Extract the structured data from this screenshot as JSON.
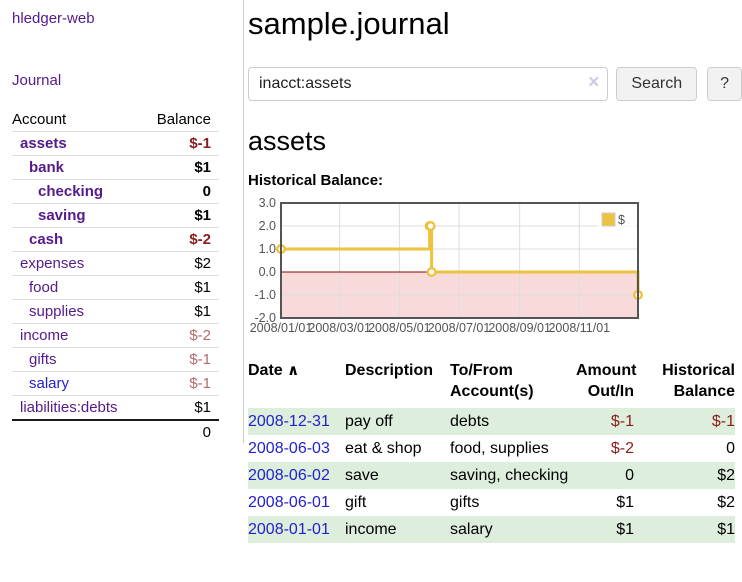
{
  "sidebar": {
    "brand": "hledger-web",
    "nav": {
      "journal_label": "Journal"
    },
    "accounts_table": {
      "headers": {
        "account": "Account",
        "balance": "Balance"
      },
      "rows": [
        {
          "name": "assets",
          "balance": "$-1",
          "level": 1,
          "bold": true,
          "negative": true
        },
        {
          "name": "bank",
          "balance": "$1",
          "level": 2,
          "bold": true,
          "negative": false
        },
        {
          "name": "checking",
          "balance": "0",
          "level": 3,
          "bold": true,
          "negative": false
        },
        {
          "name": "saving",
          "balance": "$1",
          "level": 3,
          "bold": true,
          "negative": false
        },
        {
          "name": "cash",
          "balance": "$-2",
          "level": 2,
          "bold": true,
          "negative": true
        },
        {
          "name": "expenses",
          "balance": "$2",
          "level": 1,
          "bold": false,
          "negative": false
        },
        {
          "name": "food",
          "balance": "$1",
          "level": 2,
          "bold": false,
          "negative": false
        },
        {
          "name": "supplies",
          "balance": "$1",
          "level": 2,
          "bold": false,
          "negative": false
        },
        {
          "name": "income",
          "balance": "$-2",
          "level": 1,
          "bold": false,
          "negative": true
        },
        {
          "name": "gifts",
          "balance": "$-1",
          "level": 2,
          "bold": false,
          "negative": true
        },
        {
          "name": "salary",
          "balance": "$-1",
          "level": 2,
          "bold": false,
          "negative": true,
          "link_color": "blue"
        },
        {
          "name": "liabilities:debts",
          "balance": "$1",
          "level": 1,
          "bold": false,
          "negative": false
        }
      ],
      "total": "0"
    }
  },
  "header": {
    "title": "sample.journal"
  },
  "search": {
    "query": "inacct:assets",
    "clear_icon": "×",
    "search_label": "Search",
    "help_label": "?"
  },
  "account_page": {
    "title": "assets",
    "chart_label": "Historical Balance:"
  },
  "chart_data": {
    "type": "line",
    "title": "Historical Balance",
    "xlabel": "",
    "ylabel": "",
    "steps": true,
    "grid": true,
    "legend_position": "top-right",
    "legend": [
      {
        "label": "$",
        "color": "#edc240"
      }
    ],
    "xlim": [
      0,
      365
    ],
    "ylim": [
      -2,
      3
    ],
    "y_ticks": [
      3.0,
      2.0,
      1.0,
      0.0,
      -1.0,
      -2.0
    ],
    "x_ticks": [
      {
        "label": "2008/01/01",
        "x": 0
      },
      {
        "label": "2008/03/01",
        "x": 60
      },
      {
        "label": "2008/05/01",
        "x": 121
      },
      {
        "label": "2008/07/01",
        "x": 182
      },
      {
        "label": "2008/09/01",
        "x": 244
      },
      {
        "label": "2008/11/01",
        "x": 305
      }
    ],
    "series": [
      {
        "name": "$",
        "points": [
          {
            "date": "2008-01-01",
            "x": 0,
            "y": 1
          },
          {
            "date": "2008-06-01",
            "x": 152,
            "y": 2
          },
          {
            "date": "2008-06-02",
            "x": 153,
            "y": 2
          },
          {
            "date": "2008-06-03",
            "x": 154,
            "y": 0
          },
          {
            "date": "2008-12-31",
            "x": 365,
            "y": -1
          }
        ]
      }
    ],
    "line_color": "#edc240",
    "marker_fill": "#ffffff",
    "negative_region_color": "#f9dada",
    "zero_line_color": "#990000",
    "grid_color": "#dddddd",
    "border_color": "#545454"
  },
  "register_table": {
    "headers": {
      "date": "Date",
      "sort_icon": "∧",
      "description": "Description",
      "accounts": "To/From Account(s)",
      "amount": "Amount Out/In",
      "balance": "Historical Balance"
    },
    "rows": [
      {
        "date": "2008-12-31",
        "description": "pay off",
        "accounts": "debts",
        "amount": "$-1",
        "balance": "$-1",
        "amount_negative": true,
        "balance_negative": true
      },
      {
        "date": "2008-06-03",
        "description": "eat & shop",
        "accounts": "food, supplies",
        "amount": "$-2",
        "balance": "0",
        "amount_negative": true,
        "balance_negative": false
      },
      {
        "date": "2008-06-02",
        "description": "save",
        "accounts": "saving, checking",
        "amount": "0",
        "balance": "$2",
        "amount_negative": false,
        "balance_negative": false
      },
      {
        "date": "2008-06-01",
        "description": "gift",
        "accounts": "gifts",
        "amount": "$1",
        "balance": "$2",
        "amount_negative": false,
        "balance_negative": false
      },
      {
        "date": "2008-01-01",
        "description": "income",
        "accounts": "salary",
        "amount": "$1",
        "balance": "$1",
        "amount_negative": false,
        "balance_negative": false
      }
    ]
  },
  "colors": {
    "link_purple": "#551a8b",
    "link_blue": "#2222cc",
    "negative_bold": "#8b1d1d",
    "negative_light": "#b56c6c",
    "row_stripe_green": "#ddeedd",
    "series_gold": "#edc240"
  }
}
